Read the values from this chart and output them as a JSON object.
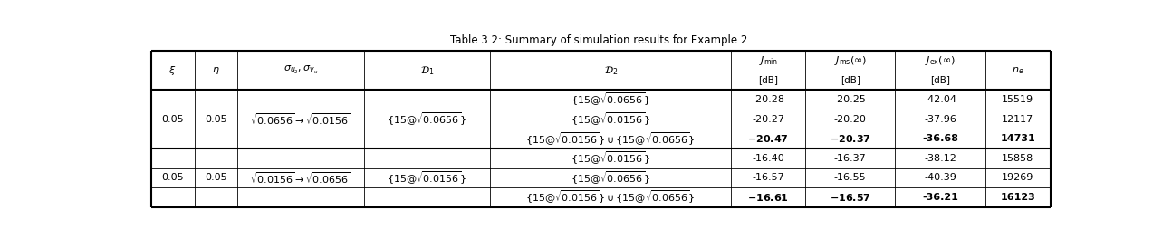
{
  "title": "Table 3.2: Summary of simulation results for Example 2.",
  "col_props": [
    0.048,
    0.048,
    0.14,
    0.14,
    0.268,
    0.082,
    0.1,
    0.1,
    0.072
  ],
  "row_group1": {
    "xi": "0.05",
    "eta": "0.05",
    "sigma": "$\\sqrt{0.0656} \\rightarrow \\sqrt{0.0156}$",
    "D1": "$\\{15@\\sqrt{0.0656}\\}$",
    "rows": [
      {
        "D2": "$\\{15@\\sqrt{0.0656}\\}$",
        "Jmin": "-20.28",
        "Jms": "-20.25",
        "Jex": "-42.04",
        "ne": "15519",
        "bold": false
      },
      {
        "D2": "$\\{15@\\sqrt{0.0156}\\}$",
        "Jmin": "-20.27",
        "Jms": "-20.20",
        "Jex": "-37.96",
        "ne": "12117",
        "bold": false
      },
      {
        "D2": "$\\{15@\\sqrt{0.0156}\\} \\cup \\{15@\\sqrt{0.0656}\\}$",
        "Jmin": "$\\mathbf{-20.47}$",
        "Jms": "$\\mathbf{-20.37}$",
        "Jex": "-36.68",
        "ne": "14731",
        "bold": true
      }
    ]
  },
  "row_group2": {
    "xi": "0.05",
    "eta": "0.05",
    "sigma": "$\\sqrt{0.0156} \\rightarrow \\sqrt{0.0656}$",
    "D1": "$\\{15@\\sqrt{0.0156}\\}$",
    "rows": [
      {
        "D2": "$\\{15@\\sqrt{0.0156}\\}$",
        "Jmin": "-16.40",
        "Jms": "-16.37",
        "Jex": "-38.12",
        "ne": "15858",
        "bold": false
      },
      {
        "D2": "$\\{15@\\sqrt{0.0656}\\}$",
        "Jmin": "-16.57",
        "Jms": "-16.55",
        "Jex": "-40.39",
        "ne": "19269",
        "bold": false
      },
      {
        "D2": "$\\{15@\\sqrt{0.0156}\\} \\cup \\{15@\\sqrt{0.0656}\\}$",
        "Jmin": "$\\mathbf{-16.61}$",
        "Jms": "$\\mathbf{-16.57}$",
        "Jex": "-36.21",
        "ne": "16123",
        "bold": true
      }
    ]
  }
}
